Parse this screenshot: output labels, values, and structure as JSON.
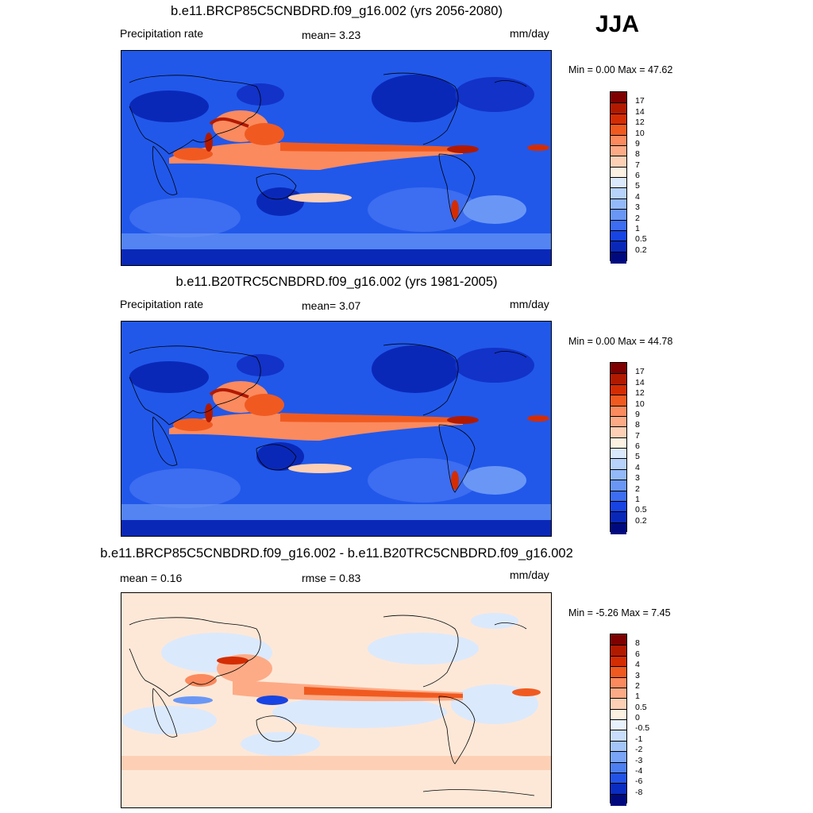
{
  "season": "JJA",
  "panels": [
    {
      "title": "b.e11.BRCP85C5CNBDRD.f09_g16.002 (yrs 2056-2080)",
      "left_label": "Precipitation rate",
      "stat_label": "mean=   3.23",
      "units": "mm/day",
      "minmax": "Min =   0.00 Max =  47.62",
      "colorbar_labels": [
        "17",
        "14",
        "12",
        "10",
        "9",
        "8",
        "7",
        "6",
        "5",
        "4",
        "3",
        "2",
        "1",
        "0.5",
        "0.2"
      ],
      "colorbar_colors": [
        "#7f0000",
        "#b21a00",
        "#d42d04",
        "#f05a20",
        "#fb8a5e",
        "#fdab86",
        "#fdd0b5",
        "#fdf1e2",
        "#dbe9fc",
        "#b7d2fb",
        "#93b9fa",
        "#6a97f5",
        "#3d6df0",
        "#1844e3",
        "#0a28b8",
        "#000a7e"
      ]
    },
    {
      "title": "b.e11.B20TRC5CNBDRD.f09_g16.002 (yrs 1981-2005)",
      "left_label": "Precipitation rate",
      "stat_label": "mean=   3.07",
      "units": "mm/day",
      "minmax": "Min =   0.00 Max =  44.78",
      "colorbar_labels": [
        "17",
        "14",
        "12",
        "10",
        "9",
        "8",
        "7",
        "6",
        "5",
        "4",
        "3",
        "2",
        "1",
        "0.5",
        "0.2"
      ],
      "colorbar_colors": [
        "#7f0000",
        "#b21a00",
        "#d42d04",
        "#f05a20",
        "#fb8a5e",
        "#fdab86",
        "#fdd0b5",
        "#fdf1e2",
        "#dbe9fc",
        "#b7d2fb",
        "#93b9fa",
        "#6a97f5",
        "#3d6df0",
        "#1844e3",
        "#0a28b8",
        "#000a7e"
      ]
    },
    {
      "title": "b.e11.BRCP85C5CNBDRD.f09_g16.002 - b.e11.B20TRC5CNBDRD.f09_g16.002",
      "left_label": "mean =   0.16",
      "stat_label": "rmse =   0.83",
      "units": "mm/day",
      "minmax": "Min =  -5.26 Max =   7.45",
      "colorbar_labels": [
        "8",
        "6",
        "4",
        "3",
        "2",
        "1",
        "0.5",
        "0",
        "-0.5",
        "-1",
        "-2",
        "-3",
        "-4",
        "-6",
        "-8"
      ],
      "colorbar_colors": [
        "#7f0000",
        "#b21a00",
        "#d42d04",
        "#f05a20",
        "#fb8a5e",
        "#fdab86",
        "#fdd0b5",
        "#fdf1e2",
        "#e8f2fd",
        "#c9defc",
        "#a4c5fa",
        "#7aa5f6",
        "#4e7ff1",
        "#2353e6",
        "#0a2cc0",
        "#000a7e"
      ]
    }
  ]
}
